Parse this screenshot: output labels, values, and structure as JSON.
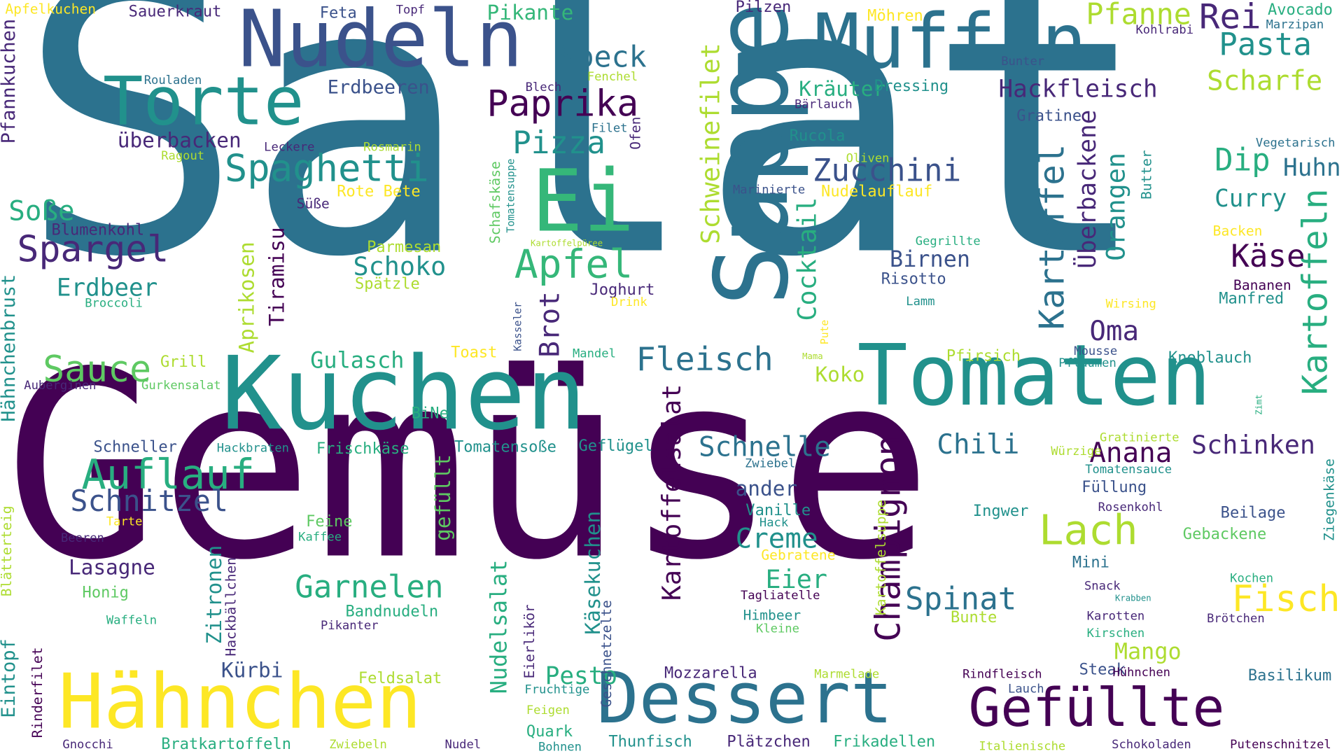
{
  "palette": {
    "background": "#ffffff",
    "c0": "#440154",
    "c1": "#3b528b",
    "c2": "#2c728e",
    "c3": "#21918c",
    "c4": "#28ae80",
    "c5": "#5ec962",
    "c6": "#addc30",
    "c7": "#fde725",
    "c8": "#482878",
    "c9": "#35b779"
  },
  "words": [
    {
      "text": "Salat",
      "c": "c2"
    },
    {
      "text": "Gemüse",
      "c": "c0"
    },
    {
      "text": "Kuchen",
      "c": "c3"
    },
    {
      "text": "Tomaten",
      "c": "c3"
    },
    {
      "text": "Suppe",
      "c": "c2"
    },
    {
      "text": "Nudeln",
      "c": "c1"
    },
    {
      "text": "Muffin",
      "c": "c2"
    },
    {
      "text": "Torte",
      "c": "c3"
    },
    {
      "text": "Ei",
      "c": "c9"
    },
    {
      "text": "Hähnchen",
      "c": "c7"
    },
    {
      "text": "Dessert",
      "c": "c2"
    },
    {
      "text": "Gefüllte",
      "c": "c0"
    },
    {
      "text": "Apfel",
      "c": "c9"
    },
    {
      "text": "Auflauf",
      "c": "c4"
    },
    {
      "text": "Spaghetti",
      "c": "c3"
    },
    {
      "text": "Paprika",
      "c": "c0"
    },
    {
      "text": "Spargel",
      "c": "c8"
    },
    {
      "text": "Sauce",
      "c": "c5"
    },
    {
      "text": "Schnitzel",
      "c": "c1"
    },
    {
      "text": "Garnelen",
      "c": "c4"
    },
    {
      "text": "Fleisch",
      "c": "c2"
    },
    {
      "text": "Kartoffel",
      "c": "c2"
    },
    {
      "text": "Kartoffeln",
      "c": "c4"
    },
    {
      "text": "Kartoffelsalat",
      "c": "c0"
    },
    {
      "text": "Schweinefilet",
      "c": "c6"
    },
    {
      "text": "Lach",
      "c": "c6"
    },
    {
      "text": "Fisch",
      "c": "c7"
    },
    {
      "text": "Champignon",
      "c": "c0"
    },
    {
      "text": "Zucchini",
      "c": "c1"
    },
    {
      "text": "Pizza",
      "c": "c3"
    },
    {
      "text": "Speck",
      "c": "c2"
    },
    {
      "text": "Pasta",
      "c": "c3"
    },
    {
      "text": "Rei",
      "c": "c8"
    },
    {
      "text": "Pfanne",
      "c": "c6"
    },
    {
      "text": "Scharfe",
      "c": "c6"
    },
    {
      "text": "Hackfleisch",
      "c": "c8"
    },
    {
      "text": "Dip",
      "c": "c4"
    },
    {
      "text": "Käse",
      "c": "c0"
    },
    {
      "text": "Oma",
      "c": "c8"
    },
    {
      "text": "Orangen",
      "c": "c3"
    },
    {
      "text": "Überbackene",
      "c": "c8"
    },
    {
      "text": "Curry",
      "c": "c3"
    },
    {
      "text": "Huhn",
      "c": "c2"
    },
    {
      "text": "Schnelle",
      "c": "c2"
    },
    {
      "text": "Chili",
      "c": "c2"
    },
    {
      "text": "Anana",
      "c": "c0"
    },
    {
      "text": "Schinken",
      "c": "c8"
    },
    {
      "text": "Spinat",
      "c": "c2"
    },
    {
      "text": "Creme",
      "c": "c3"
    },
    {
      "text": "Eier",
      "c": "c4"
    },
    {
      "text": "Cocktail",
      "c": "c4"
    },
    {
      "text": "Brot",
      "c": "c8"
    },
    {
      "text": "Schoko",
      "c": "c3"
    },
    {
      "text": "Erdbeer",
      "c": "c3"
    },
    {
      "text": "Soße",
      "c": "c4"
    },
    {
      "text": "Lasagne",
      "c": "c8"
    },
    {
      "text": "Kürbi",
      "c": "c1"
    },
    {
      "text": "Pesto",
      "c": "c4"
    },
    {
      "text": "Mango",
      "c": "c6"
    },
    {
      "text": "Gulasch",
      "c": "c4"
    },
    {
      "text": "Erdbeeren",
      "c": "c1"
    },
    {
      "text": "überbacken",
      "c": "c8"
    },
    {
      "text": "Birnen",
      "c": "c1"
    },
    {
      "text": "Tiramisu",
      "c": "c0"
    },
    {
      "text": "Aprikosen",
      "c": "c6"
    },
    {
      "text": "Zitronen",
      "c": "c3"
    },
    {
      "text": "Käsekuchen",
      "c": "c3"
    },
    {
      "text": "Nudelsalat",
      "c": "c4"
    },
    {
      "text": "gefüllt",
      "c": "c5"
    },
    {
      "text": "Koko",
      "c": "c6"
    },
    {
      "text": "Kräuter",
      "c": "c4"
    },
    {
      "text": "Rucola",
      "c": "c3"
    },
    {
      "text": "Pikante",
      "c": "c9"
    },
    {
      "text": "Bandnudeln",
      "c": "c4"
    },
    {
      "text": "Frischkäse",
      "c": "c4"
    },
    {
      "text": "Pfannkuchen",
      "c": "c8"
    },
    {
      "text": "Hähnchenbrust",
      "c": "c3"
    },
    {
      "text": "Eintopf",
      "c": "c3"
    },
    {
      "text": "Blätterteig",
      "c": "c6"
    },
    {
      "text": "Rinderfilet",
      "c": "c0"
    },
    {
      "text": "Schafskäse",
      "c": "c5"
    },
    {
      "text": "Tomatensuppe",
      "c": "c3"
    },
    {
      "text": "Kartoffelsuppe",
      "c": "c6"
    },
    {
      "text": "Hackbällchen",
      "c": "c8"
    },
    {
      "text": "Geschnetzelte",
      "c": "c1"
    },
    {
      "text": "Eierlikör",
      "c": "c8"
    },
    {
      "text": "Ofen",
      "c": "c8"
    },
    {
      "text": "Butter",
      "c": "c3"
    },
    {
      "text": "Ziegenkäse",
      "c": "c3"
    },
    {
      "text": "Apfelkuchen",
      "c": "c7"
    },
    {
      "text": "Sauerkraut",
      "c": "c8"
    },
    {
      "text": "Feta",
      "c": "c1"
    },
    {
      "text": "Topf",
      "c": "c8"
    },
    {
      "text": "Pilzen",
      "c": "c8"
    },
    {
      "text": "Möhren",
      "c": "c7"
    },
    {
      "text": "Avocado",
      "c": "c4"
    },
    {
      "text": "Marzipan",
      "c": "c2"
    },
    {
      "text": "Kohlrabi",
      "c": "c8"
    },
    {
      "text": "Bunter",
      "c": "c1"
    },
    {
      "text": "Rouladen",
      "c": "c2"
    },
    {
      "text": "Fenchel",
      "c": "c6"
    },
    {
      "text": "Blech",
      "c": "c8"
    },
    {
      "text": "Dressing",
      "c": "c3"
    },
    {
      "text": "Bärlauch",
      "c": "c8"
    },
    {
      "text": "Gratine",
      "c": "c1"
    },
    {
      "text": "Filet",
      "c": "c2"
    },
    {
      "text": "Leckere",
      "c": "c8"
    },
    {
      "text": "Rosmarin",
      "c": "c6"
    },
    {
      "text": "Ragout",
      "c": "c6"
    },
    {
      "text": "Vegetarisch",
      "c": "c2"
    },
    {
      "text": "Oliven",
      "c": "c6"
    },
    {
      "text": "Marinierte",
      "c": "c1"
    },
    {
      "text": "Nudelauflauf",
      "c": "c7"
    },
    {
      "text": "Süße",
      "c": "c8"
    },
    {
      "text": "Rote Bete",
      "c": "c7"
    },
    {
      "text": "Blumenkohl",
      "c": "c8"
    },
    {
      "text": "Backen",
      "c": "c7"
    },
    {
      "text": "Gegrillte",
      "c": "c4"
    },
    {
      "text": "Kartoffelpüree",
      "c": "c6"
    },
    {
      "text": "Parmesan",
      "c": "c6"
    },
    {
      "text": "Spätzle",
      "c": "c6"
    },
    {
      "text": "Risotto",
      "c": "c1"
    },
    {
      "text": "Bananen",
      "c": "c0"
    },
    {
      "text": "Manfred",
      "c": "c3"
    },
    {
      "text": "Broccoli",
      "c": "c4"
    },
    {
      "text": "Joghurt",
      "c": "c8"
    },
    {
      "text": "Drink",
      "c": "c7"
    },
    {
      "text": "Lamm",
      "c": "c3"
    },
    {
      "text": "Wirsing",
      "c": "c7"
    },
    {
      "text": "Kasseler",
      "c": "c1"
    },
    {
      "text": "Pute",
      "c": "c7"
    },
    {
      "text": "Toast",
      "c": "c7"
    },
    {
      "text": "Mandel",
      "c": "c4"
    },
    {
      "text": "Mama",
      "c": "c6"
    },
    {
      "text": "Pfirsich",
      "c": "c6"
    },
    {
      "text": "Mousse",
      "c": "c1"
    },
    {
      "text": "Pflaumen",
      "c": "c3"
    },
    {
      "text": "Knoblauch",
      "c": "c3"
    },
    {
      "text": "Grill",
      "c": "c6"
    },
    {
      "text": "Gurkensalat",
      "c": "c5"
    },
    {
      "text": "Auberginen",
      "c": "c8"
    },
    {
      "text": "BiNe",
      "c": "c4"
    },
    {
      "text": "Zimt",
      "c": "c4"
    },
    {
      "text": "Gratinierte",
      "c": "c6"
    },
    {
      "text": "Würzige",
      "c": "c6"
    },
    {
      "text": "Tomatensoße",
      "c": "c3"
    },
    {
      "text": "Geflügel",
      "c": "c3"
    },
    {
      "text": "Schneller",
      "c": "c1"
    },
    {
      "text": "Hackbraten",
      "c": "c3"
    },
    {
      "text": "Zwiebel",
      "c": "c2"
    },
    {
      "text": "Tomatensauce",
      "c": "c3"
    },
    {
      "text": "Füllung",
      "c": "c1"
    },
    {
      "text": "Rosenkohl",
      "c": "c8"
    },
    {
      "text": "ander",
      "c": "c1"
    },
    {
      "text": "Vanille",
      "c": "c3"
    },
    {
      "text": "Hack",
      "c": "c3"
    },
    {
      "text": "Ingwer",
      "c": "c3"
    },
    {
      "text": "Beilage",
      "c": "c1"
    },
    {
      "text": "Gebackene",
      "c": "c5"
    },
    {
      "text": "Mini",
      "c": "c2"
    },
    {
      "text": "Feine",
      "c": "c5"
    },
    {
      "text": "Kaffee",
      "c": "c4"
    },
    {
      "text": "Tarte",
      "c": "c7"
    },
    {
      "text": "Beeren",
      "c": "c8"
    },
    {
      "text": "Gebratene",
      "c": "c7"
    },
    {
      "text": "Honig",
      "c": "c5"
    },
    {
      "text": "Tagliatelle",
      "c": "c0"
    },
    {
      "text": "Snack",
      "c": "c8"
    },
    {
      "text": "Krabben",
      "c": "c3"
    },
    {
      "text": "Kochen",
      "c": "c4"
    },
    {
      "text": "Karotten",
      "c": "c8"
    },
    {
      "text": "Brötchen",
      "c": "c8"
    },
    {
      "text": "Himbeer",
      "c": "c3"
    },
    {
      "text": "Kleine",
      "c": "c5"
    },
    {
      "text": "Waffeln",
      "c": "c4"
    },
    {
      "text": "Pikanter",
      "c": "c8"
    },
    {
      "text": "Bunte",
      "c": "c6"
    },
    {
      "text": "Kirschen",
      "c": "c4"
    },
    {
      "text": "Mozzarella",
      "c": "c8"
    },
    {
      "text": "Marmelade",
      "c": "c6"
    },
    {
      "text": "Steak",
      "c": "c1"
    },
    {
      "text": "Hühnchen",
      "c": "c0"
    },
    {
      "text": "Basilikum",
      "c": "c2"
    },
    {
      "text": "Feldsalat",
      "c": "c6"
    },
    {
      "text": "Fruchtige",
      "c": "c3"
    },
    {
      "text": "Rindfleisch",
      "c": "c0"
    },
    {
      "text": "Lauch",
      "c": "c1"
    },
    {
      "text": "Feigen",
      "c": "c6"
    },
    {
      "text": "Quark",
      "c": "c4"
    },
    {
      "text": "Gnocchi",
      "c": "c8"
    },
    {
      "text": "Bratkartoffeln",
      "c": "c4"
    },
    {
      "text": "Zwiebeln",
      "c": "c6"
    },
    {
      "text": "Nudel",
      "c": "c8"
    },
    {
      "text": "Bohnen",
      "c": "c3"
    },
    {
      "text": "Thunfisch",
      "c": "c3"
    },
    {
      "text": "Plätzchen",
      "c": "c8"
    },
    {
      "text": "Frikadellen",
      "c": "c4"
    },
    {
      "text": "Italienische",
      "c": "c6"
    },
    {
      "text": "Schokoladen",
      "c": "c8"
    },
    {
      "text": "Putenschnitzel",
      "c": "c0"
    }
  ]
}
